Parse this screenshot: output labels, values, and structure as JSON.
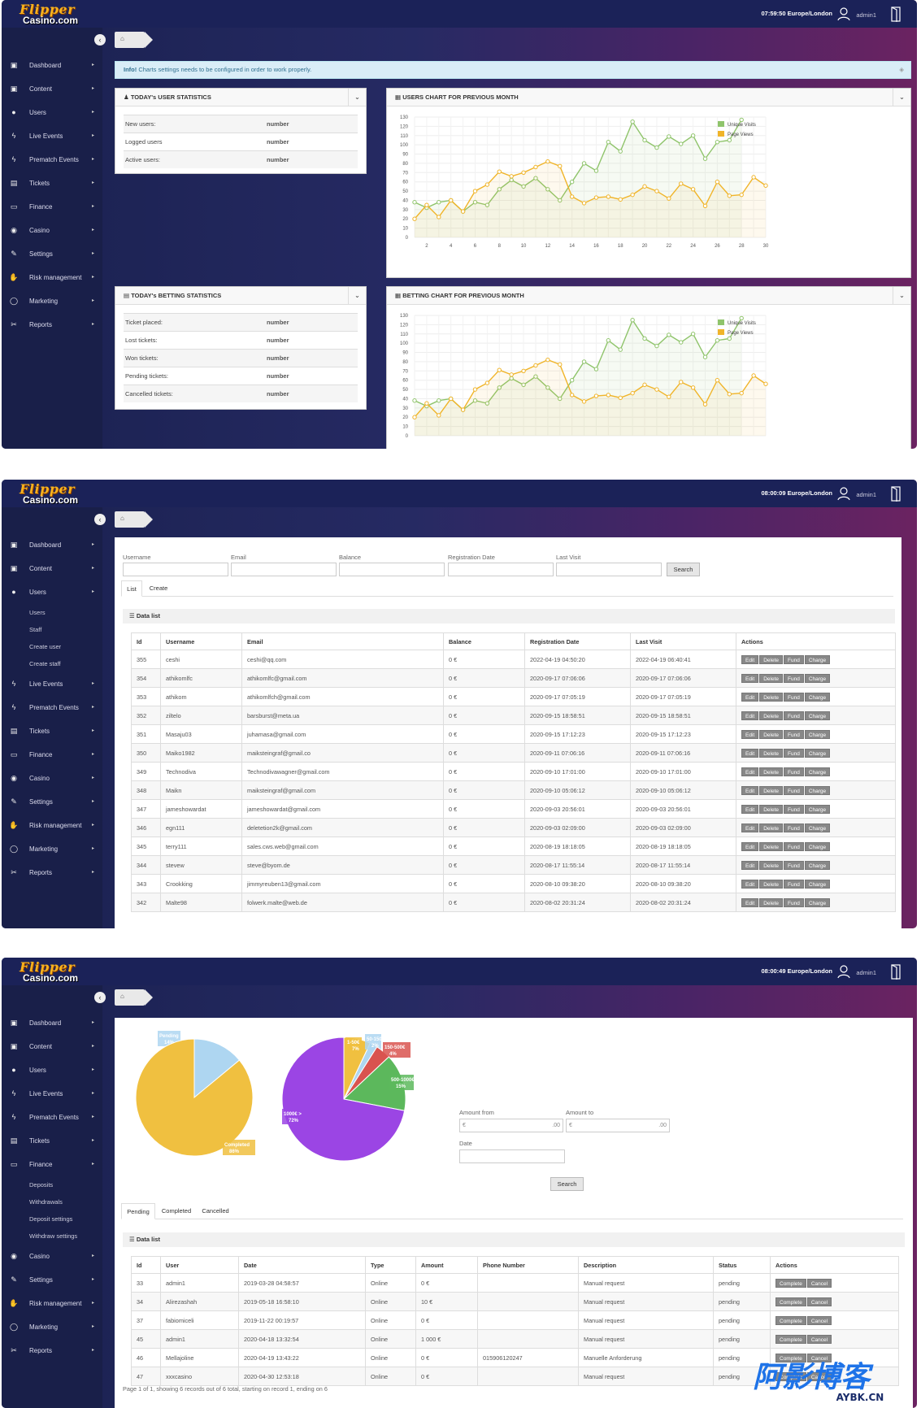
{
  "app": {
    "logo_line1": "Flipper",
    "logo_line2": "Casino.com",
    "user": "admin1"
  },
  "screens": [
    {
      "clock": "07:59:50 Europe/London"
    },
    {
      "clock": "08:00:09 Europe/London"
    },
    {
      "clock": "08:00:49 Europe/London"
    }
  ],
  "sidebar": {
    "items": [
      "Dashboard",
      "Content",
      "Users",
      "Live Events",
      "Prematch Events",
      "Tickets",
      "Finance",
      "Casino",
      "Settings",
      "Risk management",
      "Marketing",
      "Reports"
    ],
    "users_sub": [
      "Users",
      "Staff",
      "Create user",
      "Create staff"
    ],
    "finance_sub": [
      "Deposits",
      "Withdrawals",
      "Deposit settings",
      "Withdraw settings"
    ]
  },
  "dashboard": {
    "info_label": "Info!",
    "info_text": "Charts settings needs to be configured in order to work properly.",
    "user_stats": {
      "title": "TODAY's USER STATISTICS",
      "rows": [
        {
          "label": "New users:",
          "value": "number"
        },
        {
          "label": "Logged users",
          "value": "number"
        },
        {
          "label": "Active users:",
          "value": "number"
        }
      ]
    },
    "betting_stats": {
      "title": "TODAY's BETTING STATISTICS",
      "rows": [
        {
          "label": "Ticket placed:",
          "value": "number"
        },
        {
          "label": "Lost tickets:",
          "value": "number"
        },
        {
          "label": "Won tickets:",
          "value": "number"
        },
        {
          "label": "Pending tickets:",
          "value": "number"
        },
        {
          "label": "Cancelled tickets:",
          "value": "number"
        }
      ]
    },
    "users_chart_title": "USERS CHART FOR PREVIOUS MONTH",
    "betting_chart_title": "BETTING CHART FOR PREVIOUS MONTH"
  },
  "chart_data": [
    {
      "type": "line",
      "x": [
        1,
        2,
        3,
        4,
        5,
        6,
        7,
        8,
        9,
        10,
        11,
        12,
        13,
        14,
        15,
        16,
        17,
        18,
        19,
        20,
        21,
        22,
        23,
        24,
        25,
        26,
        27,
        28,
        29,
        30
      ],
      "ylim": [
        0,
        130
      ],
      "yticks": [
        0,
        10,
        20,
        30,
        40,
        50,
        60,
        70,
        80,
        90,
        100,
        110,
        120,
        130
      ],
      "xticks": [
        2,
        4,
        6,
        8,
        10,
        12,
        14,
        16,
        18,
        20,
        22,
        24,
        26,
        28,
        30
      ],
      "grid": true,
      "legend_position": "top-right",
      "series": [
        {
          "name": "Unique Visits",
          "color": "#8fc46b",
          "values": [
            38,
            32,
            38,
            40,
            28,
            38,
            35,
            52,
            62,
            55,
            64,
            52,
            40,
            60,
            80,
            72,
            103,
            93,
            125,
            105,
            97,
            109,
            101,
            110,
            85,
            103,
            105,
            127,
            null,
            null
          ]
        },
        {
          "name": "Page Views",
          "color": "#f0b429",
          "values": [
            20,
            35,
            22,
            40,
            28,
            50,
            57,
            71,
            66,
            70,
            76,
            82,
            77,
            44,
            37,
            43,
            44,
            41,
            46,
            55,
            50,
            42,
            58,
            52,
            34,
            60,
            45,
            46,
            65,
            56
          ]
        }
      ]
    },
    {
      "type": "line",
      "x": [
        1,
        2,
        3,
        4,
        5,
        6,
        7,
        8,
        9,
        10,
        11,
        12,
        13,
        14,
        15,
        16,
        17,
        18,
        19,
        20,
        21,
        22,
        23,
        24,
        25,
        26,
        27,
        28,
        29,
        30
      ],
      "ylim": [
        0,
        130
      ],
      "yticks": [
        0,
        10,
        20,
        30,
        40,
        50,
        60,
        70,
        80,
        90,
        100,
        110,
        120,
        130
      ],
      "xticks": [],
      "grid": true,
      "legend_position": "top-right",
      "series": [
        {
          "name": "Unique Visits",
          "color": "#8fc46b",
          "values": [
            38,
            32,
            38,
            40,
            28,
            38,
            35,
            52,
            62,
            55,
            64,
            52,
            40,
            60,
            80,
            72,
            103,
            93,
            125,
            105,
            97,
            109,
            101,
            110,
            85,
            103,
            105,
            127,
            null,
            null
          ]
        },
        {
          "name": "Page Views",
          "color": "#f0b429",
          "values": [
            20,
            35,
            22,
            40,
            28,
            50,
            57,
            71,
            66,
            70,
            76,
            82,
            77,
            44,
            37,
            43,
            44,
            41,
            46,
            55,
            50,
            42,
            58,
            52,
            34,
            60,
            45,
            46,
            65,
            56
          ]
        }
      ]
    },
    {
      "type": "pie",
      "slices": [
        {
          "label": "Pending",
          "value": 14,
          "color": "#aed6f1"
        },
        {
          "label": "Completed",
          "value": 86,
          "color": "#f0c040"
        }
      ]
    },
    {
      "type": "pie",
      "slices": [
        {
          "label": "1-50€",
          "value": 7,
          "color": "#f0c040"
        },
        {
          "label": "50-150€",
          "value": 2,
          "color": "#aed6f1"
        },
        {
          "label": "150-500€",
          "value": 4,
          "color": "#d9534f"
        },
        {
          "label": "500-1000€",
          "value": 15,
          "color": "#5cb85c"
        },
        {
          "label": "1000€ >",
          "value": 72,
          "color": "#9b45e4"
        }
      ]
    }
  ],
  "users_page": {
    "filters": {
      "username": "Username",
      "email": "Email",
      "balance": "Balance",
      "reg_date": "Registration Date",
      "last_visit": "Last Visit",
      "search": "Search"
    },
    "tabs": [
      "List",
      "Create"
    ],
    "data_list": "Data list",
    "columns": [
      "Id",
      "Username",
      "Email",
      "Balance",
      "Registration Date",
      "Last Visit",
      "Actions"
    ],
    "actions": [
      "Edit",
      "Delete",
      "Fund",
      "Charge"
    ],
    "rows": [
      [
        "355",
        "ceshi",
        "ceshi@qq.com",
        "0 €",
        "2022-04-19 04:50:20",
        "2022-04-19 06:40:41"
      ],
      [
        "354",
        "athikomlfc",
        "athikomlfc@gmail.com",
        "0 €",
        "2020-09-17 07:06:06",
        "2020-09-17 07:06:06"
      ],
      [
        "353",
        "athikom",
        "athikomlfch@gmail.com",
        "0 €",
        "2020-09-17 07:05:19",
        "2020-09-17 07:05:19"
      ],
      [
        "352",
        "ziltelo",
        "barsburst@meta.ua",
        "0 €",
        "2020-09-15 18:58:51",
        "2020-09-15 18:58:51"
      ],
      [
        "351",
        "Masaju03",
        "juhamasa@gmail.com",
        "0 €",
        "2020-09-15 17:12:23",
        "2020-09-15 17:12:23"
      ],
      [
        "350",
        "Maiko1982",
        "maiksteingraf@gmail.co",
        "0 €",
        "2020-09-11 07:06:16",
        "2020-09-11 07:06:16"
      ],
      [
        "349",
        "Technodiva",
        "Technodivawagner@gmail.com",
        "0 €",
        "2020-09-10 17:01:00",
        "2020-09-10 17:01:00"
      ],
      [
        "348",
        "Maikn",
        "maiksteingraf@gmail.com",
        "0 €",
        "2020-09-10 05:06:12",
        "2020-09-10 05:06:12"
      ],
      [
        "347",
        "jameshowardat",
        "jameshowardat@gmail.com",
        "0 €",
        "2020-09-03 20:56:01",
        "2020-09-03 20:56:01"
      ],
      [
        "346",
        "egn111",
        "deletetion2k@gmail.com",
        "0 €",
        "2020-09-03 02:09:00",
        "2020-09-03 02:09:00"
      ],
      [
        "345",
        "terry111",
        "sales.cws.web@gmail.com",
        "0 €",
        "2020-08-19 18:18:05",
        "2020-08-19 18:18:05"
      ],
      [
        "344",
        "stevew",
        "steve@byom.de",
        "0 €",
        "2020-08-17 11:55:14",
        "2020-08-17 11:55:14"
      ],
      [
        "343",
        "Crookking",
        "jimmyreuben13@gmail.com",
        "0 €",
        "2020-08-10 09:38:20",
        "2020-08-10 09:38:20"
      ],
      [
        "342",
        "Malte98",
        "folwerk.malte@web.de",
        "0 €",
        "2020-08-02 20:31:24",
        "2020-08-02 20:31:24"
      ]
    ]
  },
  "deposits_page": {
    "amount_from": "Amount from",
    "amount_to": "Amount to",
    "currency": "€",
    "decimals": ".00",
    "date": "Date",
    "search": "Search",
    "tabs": [
      "Pending",
      "Completed",
      "Cancelled"
    ],
    "data_list": "Data list",
    "columns": [
      "Id",
      "User",
      "Date",
      "Type",
      "Amount",
      "Phone Number",
      "Description",
      "Status",
      "Actions"
    ],
    "actions": [
      "Complete",
      "Cancel"
    ],
    "rows": [
      [
        "33",
        "admin1",
        "2019-03-28 04:58:57",
        "Online",
        "0 €",
        "",
        "Manual request",
        "pending"
      ],
      [
        "34",
        "Alirezashah",
        "2019-05-18 16:58:10",
        "Online",
        "10 €",
        "",
        "Manual request",
        "pending"
      ],
      [
        "37",
        "fabiomiceli",
        "2019-11-22 00:19:57",
        "Online",
        "0 €",
        "",
        "Manual request",
        "pending"
      ],
      [
        "45",
        "admin1",
        "2020-04-18 13:32:54",
        "Online",
        "1 000 €",
        "",
        "Manual request",
        "pending"
      ],
      [
        "46",
        "Mellajoline",
        "2020-04-19 13:43:22",
        "Online",
        "0 €",
        "015906120247",
        "Manuelle Anforderung",
        "pending"
      ],
      [
        "47",
        "xxxcasino",
        "2020-04-30 12:53:18",
        "Online",
        "0 €",
        "",
        "Manual request",
        "pending"
      ]
    ],
    "pager": "Page 1 of 1, showing 6 records out of 6 total, starting on record 1, ending on 6"
  },
  "watermark": {
    "cn": "阿影博客",
    "url": "AYBK.CN"
  },
  "colors": {
    "nav": "#1b2258",
    "sidebar": "#191f49",
    "accent": "#f7b21e"
  }
}
